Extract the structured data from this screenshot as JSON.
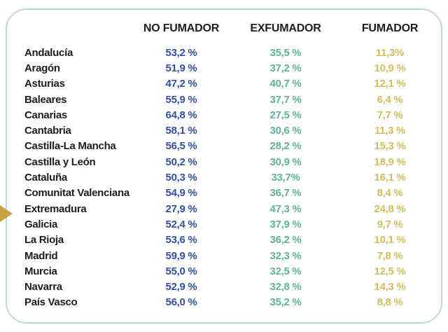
{
  "colors": {
    "card-border": "#bfd8e4",
    "text-dark": "#1d1d1b",
    "no-fumador": "#31509e",
    "exfumador": "#5fb29e",
    "fumador": "#d2bd5e",
    "arrow": "#c6a33e"
  },
  "table": {
    "columns": [
      "NO FUMADOR",
      "EXFUMADOR",
      "FUMADOR"
    ],
    "rows": [
      {
        "region": "Andalucía",
        "no_fumador": "53,2 %",
        "exfumador": "35,5 %",
        "fumador": "11,3%"
      },
      {
        "region": "Aragón",
        "no_fumador": "51,9 %",
        "exfumador": "37,2 %",
        "fumador": "10,9 %"
      },
      {
        "region": "Asturias",
        "no_fumador": "47,2 %",
        "exfumador": "40,7 %",
        "fumador": "12,1 %"
      },
      {
        "region": "Baleares",
        "no_fumador": "55,9 %",
        "exfumador": "37,7 %",
        "fumador": "6,4 %"
      },
      {
        "region": "Canarias",
        "no_fumador": "64,8 %",
        "exfumador": "27,5 %",
        "fumador": "7,7 %"
      },
      {
        "region": "Cantabria",
        "no_fumador": "58,1 %",
        "exfumador": "30,6 %",
        "fumador": "11,3 %"
      },
      {
        "region": "Castilla-La Mancha",
        "no_fumador": "56,5 %",
        "exfumador": "28,2 %",
        "fumador": "15,3 %"
      },
      {
        "region": "Castilla y León",
        "no_fumador": "50,2 %",
        "exfumador": "30,9 %",
        "fumador": "18,9 %"
      },
      {
        "region": "Cataluña",
        "no_fumador": "50,3 %",
        "exfumador": "33,7%",
        "fumador": "16,1 %"
      },
      {
        "region": "Comunitat Valenciana",
        "no_fumador": "54,9 %",
        "exfumador": "36,7 %",
        "fumador": "8,4 %"
      },
      {
        "region": "Extremadura",
        "no_fumador": "27,9 %",
        "exfumador": "47,3 %",
        "fumador": "24,8 %"
      },
      {
        "region": "Galicia",
        "no_fumador": "52,4 %",
        "exfumador": "37,9 %",
        "fumador": "9,7 %"
      },
      {
        "region": "La Rioja",
        "no_fumador": "53,6 %",
        "exfumador": "36,2 %",
        "fumador": "10,1 %"
      },
      {
        "region": "Madrid",
        "no_fumador": "59,9 %",
        "exfumador": "32,3 %",
        "fumador": "7,8 %"
      },
      {
        "region": "Murcia",
        "no_fumador": "55,0 %",
        "exfumador": "32,5 %",
        "fumador": "12,5 %"
      },
      {
        "region": "Navarra",
        "no_fumador": "52,9 %",
        "exfumador": "32,8 %",
        "fumador": "14,3 %"
      },
      {
        "region": "País Vasco",
        "no_fumador": "56,0 %",
        "exfumador": "35,2 %",
        "fumador": "8,8 %"
      }
    ]
  },
  "chart_data": {
    "type": "table",
    "categories": [
      "Andalucía",
      "Aragón",
      "Asturias",
      "Baleares",
      "Canarias",
      "Cantabria",
      "Castilla-La Mancha",
      "Castilla y León",
      "Cataluña",
      "Comunitat Valenciana",
      "Extremadura",
      "Galicia",
      "La Rioja",
      "Madrid",
      "Murcia",
      "Navarra",
      "País Vasco"
    ],
    "series": [
      {
        "name": "NO FUMADOR",
        "values": [
          53.2,
          51.9,
          47.2,
          55.9,
          64.8,
          58.1,
          56.5,
          50.2,
          50.3,
          54.9,
          27.9,
          52.4,
          53.6,
          59.9,
          55.0,
          52.9,
          56.0
        ]
      },
      {
        "name": "EXFUMADOR",
        "values": [
          35.5,
          37.2,
          40.7,
          37.7,
          27.5,
          30.6,
          28.2,
          30.9,
          33.7,
          36.7,
          47.3,
          37.9,
          36.2,
          32.3,
          32.5,
          32.8,
          35.2
        ]
      },
      {
        "name": "FUMADOR",
        "values": [
          11.3,
          10.9,
          12.1,
          6.4,
          7.7,
          11.3,
          15.3,
          18.9,
          16.1,
          8.4,
          24.8,
          9.7,
          10.1,
          7.8,
          12.5,
          14.3,
          8.8
        ]
      }
    ],
    "title": "",
    "xlabel": "",
    "ylabel": "",
    "unit": "%"
  }
}
